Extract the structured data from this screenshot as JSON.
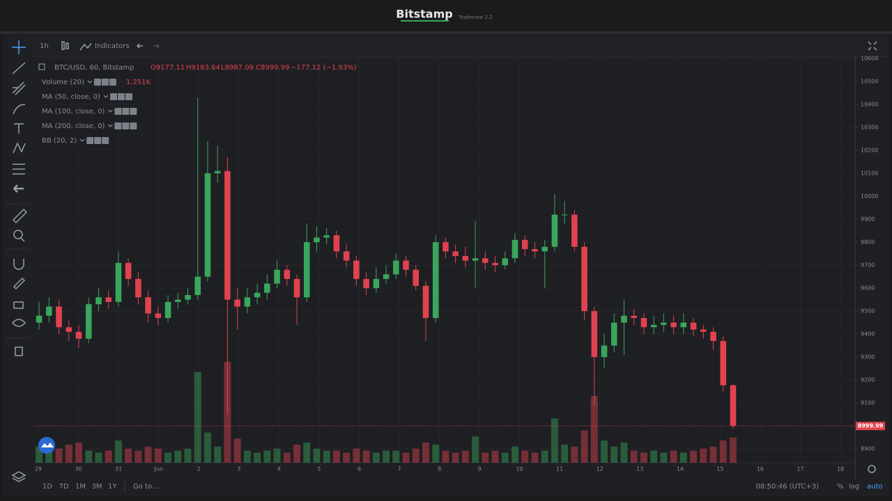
{
  "header": {
    "title": "Bitstamp",
    "subtitle": "Tradeview 2.2"
  },
  "toolbar": {
    "interval": "1h",
    "indicators": "Indicators"
  },
  "legend": {
    "symbol": "BTC/USD, 60, Bitstamp",
    "open": "O9177.11",
    "high": "H9183.64",
    "low": "L8987.09",
    "close": "C8999.99",
    "change": "−177.12 (−1.93%)"
  },
  "studies": [
    {
      "name": "Volume (20)",
      "value": "1.251K"
    },
    {
      "name": "MA (50, close, 0)"
    },
    {
      "name": "MA (100, close, 0)"
    },
    {
      "name": "MA (200, close, 0)"
    },
    {
      "name": "BB (20, 2)"
    }
  ],
  "chart_data": {
    "type": "candlestick",
    "x_labels": [
      "29",
      "30",
      "31",
      "Jun",
      "2",
      "3",
      "4",
      "5",
      "6",
      "7",
      "8",
      "9",
      "10",
      "11",
      "12",
      "13",
      "14",
      "15",
      "16",
      "17",
      "18"
    ],
    "open": [
      9450,
      9480,
      9520,
      9430,
      9410,
      9380,
      9530,
      9560,
      9540,
      9710,
      9640,
      9560,
      9490,
      9470,
      9540,
      9550,
      9570,
      9650,
      10100,
      10110,
      9550,
      9520,
      9560,
      9580,
      9620,
      9680,
      9640,
      9560,
      9800,
      9820,
      9830,
      9760,
      9720,
      9640,
      9600,
      9640,
      9660,
      9720,
      9680,
      9610,
      9470,
      9800,
      9760,
      9740,
      9720,
      9730,
      9710,
      9700,
      9730,
      9810,
      9770,
      9760,
      9780,
      9920,
      9920,
      9780,
      9500,
      9300,
      9350,
      9450,
      9480,
      9470,
      9430,
      9440,
      9450,
      9430,
      9450,
      9420,
      9410,
      9370,
      9177.11
    ],
    "high": [
      9540,
      9560,
      9550,
      9460,
      9440,
      9560,
      9600,
      9590,
      9760,
      9730,
      9670,
      9590,
      9520,
      9570,
      9580,
      9600,
      10430,
      10240,
      10220,
      10170,
      9600,
      9600,
      9620,
      9660,
      9720,
      9700,
      9660,
      9880,
      9870,
      9860,
      9850,
      9790,
      9740,
      9670,
      9690,
      9700,
      9750,
      9740,
      9700,
      9630,
      9830,
      9820,
      9790,
      9780,
      9890,
      9760,
      9740,
      9760,
      9840,
      9830,
      9800,
      9810,
      10010,
      9980,
      9940,
      9800,
      9520,
      9400,
      9490,
      9550,
      9510,
      9490,
      9480,
      9490,
      9480,
      9490,
      9470,
      9440,
      9430,
      9390,
      9183.64
    ],
    "low": [
      9420,
      9450,
      9400,
      9370,
      9340,
      9360,
      9500,
      9510,
      9520,
      9610,
      9530,
      9450,
      9440,
      9450,
      9510,
      9530,
      9550,
      9630,
      10060,
      9050,
      9420,
      9490,
      9530,
      9550,
      9600,
      9610,
      9440,
      9540,
      9760,
      9790,
      9730,
      9690,
      9610,
      9570,
      9580,
      9620,
      9640,
      9650,
      9590,
      9370,
      9450,
      9730,
      9710,
      9690,
      9600,
      9680,
      9670,
      9680,
      9710,
      9740,
      9730,
      9600,
      9760,
      9880,
      9760,
      9460,
      9090,
      9250,
      9320,
      9310,
      9440,
      9400,
      9400,
      9410,
      9400,
      9400,
      9390,
      9380,
      9330,
      9150,
      8987.09
    ],
    "close": [
      9480,
      9520,
      9430,
      9410,
      9380,
      9530,
      9560,
      9540,
      9710,
      9640,
      9560,
      9490,
      9470,
      9540,
      9550,
      9570,
      9650,
      10100,
      10110,
      9550,
      9520,
      9560,
      9580,
      9620,
      9680,
      9640,
      9560,
      9800,
      9820,
      9830,
      9760,
      9720,
      9640,
      9600,
      9640,
      9660,
      9720,
      9680,
      9610,
      9470,
      9800,
      9760,
      9740,
      9720,
      9730,
      9710,
      9700,
      9730,
      9810,
      9770,
      9760,
      9780,
      9920,
      9920,
      9780,
      9500,
      9300,
      9350,
      9450,
      9480,
      9470,
      9430,
      9440,
      9450,
      9430,
      9450,
      9420,
      9410,
      9370,
      9177.11,
      8999.99
    ],
    "volume": [
      0.8,
      0.6,
      0.7,
      0.9,
      1.0,
      0.6,
      0.5,
      0.6,
      1.1,
      0.7,
      0.6,
      0.8,
      0.7,
      0.5,
      0.6,
      0.7,
      4.5,
      1.5,
      0.8,
      5.0,
      1.2,
      0.6,
      0.5,
      0.6,
      0.7,
      0.5,
      0.9,
      1.0,
      0.7,
      0.6,
      0.6,
      0.5,
      0.7,
      0.6,
      0.5,
      0.6,
      0.6,
      0.5,
      0.7,
      1.0,
      0.9,
      0.6,
      0.5,
      0.6,
      1.3,
      0.5,
      0.6,
      0.5,
      0.8,
      0.6,
      0.5,
      0.6,
      2.2,
      0.9,
      0.8,
      1.6,
      3.3,
      1.1,
      0.8,
      1.0,
      0.6,
      0.5,
      0.6,
      0.5,
      0.6,
      0.5,
      0.6,
      0.7,
      0.8,
      1.1,
      1.251
    ],
    "up_color": "#3aa65c",
    "down_color": "#e0434f",
    "ylim": [
      8840,
      10606
    ],
    "yticks": [
      8900,
      9100,
      9200,
      9300,
      9400,
      9500,
      9600,
      9700,
      9800,
      9900,
      10000,
      10100,
      10200,
      10300,
      10400,
      10500,
      10600
    ],
    "last_price": 8999.99,
    "grid": true
  },
  "footer": {
    "ranges": [
      "1D",
      "7D",
      "1M",
      "3M",
      "1Y"
    ],
    "goto": "Go to...",
    "time": "08:50:46 (UTC+3)",
    "percent": "%",
    "log": "log",
    "auto": "auto"
  }
}
